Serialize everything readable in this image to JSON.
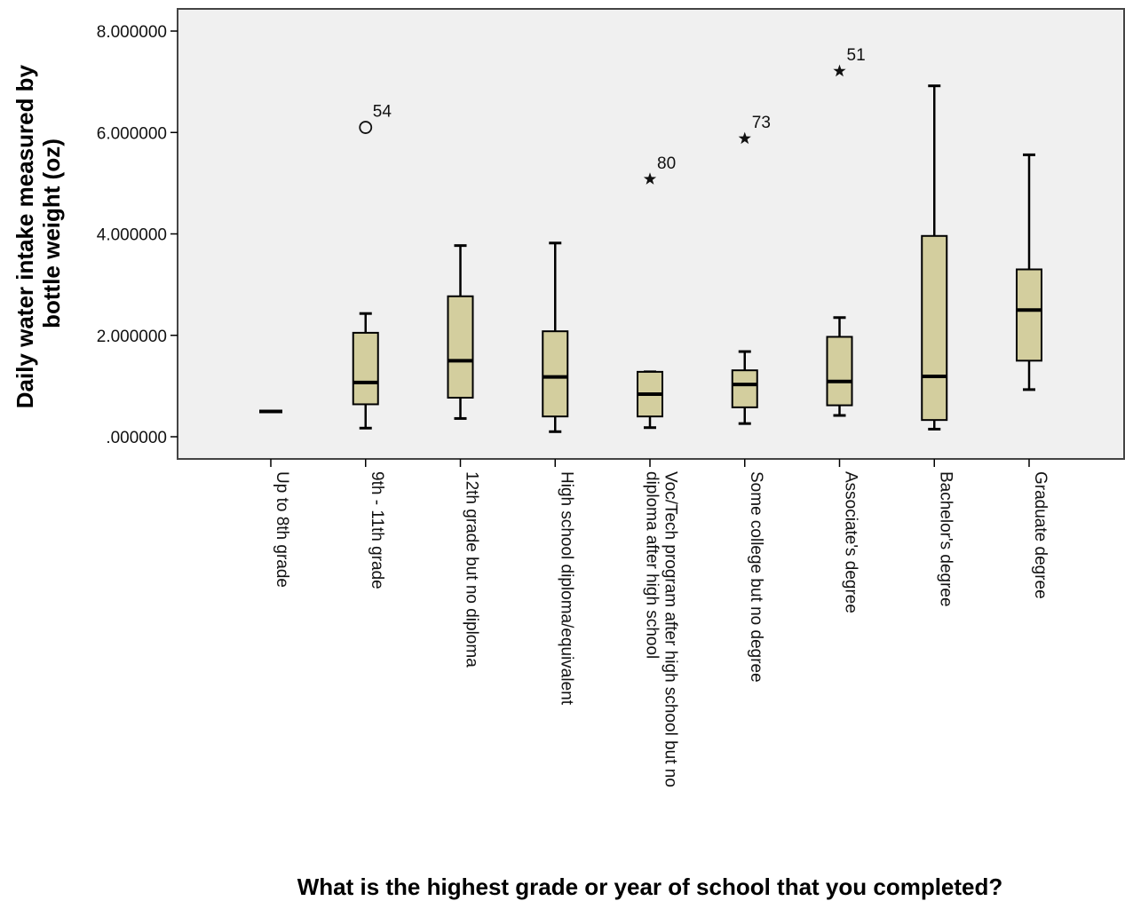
{
  "chart_data": {
    "type": "boxplot",
    "ylabel_lines": [
      "Daily water intake measured by",
      "bottle weight (oz)"
    ],
    "xlabel": "What is the highest grade or year of school that you completed?",
    "ylim": [
      0,
      8
    ],
    "yticks": [
      0,
      2,
      4,
      6,
      8
    ],
    "ytick_labels": [
      ".000000",
      "2.000000",
      "4.000000",
      "6.000000",
      "8.000000"
    ],
    "grid": false,
    "categories": [
      {
        "label_lines": [
          "Up to 8th grade"
        ]
      },
      {
        "label_lines": [
          "9th - 11th grade"
        ]
      },
      {
        "label_lines": [
          "12th grade but no diploma"
        ]
      },
      {
        "label_lines": [
          "High school diploma/equivalent"
        ]
      },
      {
        "label_lines": [
          "Voc/Tech program after high school but no",
          "diploma after high school"
        ]
      },
      {
        "label_lines": [
          "Some college but no degree"
        ]
      },
      {
        "label_lines": [
          "Associate's degree"
        ]
      },
      {
        "label_lines": [
          "Bachelor's degree"
        ]
      },
      {
        "label_lines": [
          "Graduate degree"
        ]
      }
    ],
    "boxes": [
      {
        "min": 0.5,
        "q1": 0.5,
        "median": 0.5,
        "q3": 0.5,
        "max": 0.5
      },
      {
        "min": 0.17,
        "q1": 0.64,
        "median": 1.07,
        "q3": 2.05,
        "max": 2.43
      },
      {
        "min": 0.36,
        "q1": 0.77,
        "median": 1.5,
        "q3": 2.77,
        "max": 3.77
      },
      {
        "min": 0.1,
        "q1": 0.4,
        "median": 1.18,
        "q3": 2.08,
        "max": 3.82
      },
      {
        "min": 0.18,
        "q1": 0.4,
        "median": 0.84,
        "q3": 1.28,
        "max": 1.28
      },
      {
        "min": 0.26,
        "q1": 0.58,
        "median": 1.03,
        "q3": 1.31,
        "max": 1.68
      },
      {
        "min": 0.42,
        "q1": 0.62,
        "median": 1.09,
        "q3": 1.97,
        "max": 2.35
      },
      {
        "min": 0.15,
        "q1": 0.33,
        "median": 1.19,
        "q3": 3.96,
        "max": 6.92
      },
      {
        "min": 0.93,
        "q1": 1.5,
        "median": 2.5,
        "q3": 3.3,
        "max": 5.56
      }
    ],
    "outliers": [
      {
        "category": 1,
        "value": 6.1,
        "marker": "circle",
        "label": "54"
      },
      {
        "category": 4,
        "value": 5.08,
        "marker": "star",
        "label": "80"
      },
      {
        "category": 5,
        "value": 5.88,
        "marker": "star",
        "label": "73"
      },
      {
        "category": 6,
        "value": 7.21,
        "marker": "star",
        "label": "51"
      }
    ],
    "colors": {
      "box_fill": "#D3CE9E",
      "plot_bg": "#F0F0F0",
      "stroke": "#000000"
    }
  }
}
